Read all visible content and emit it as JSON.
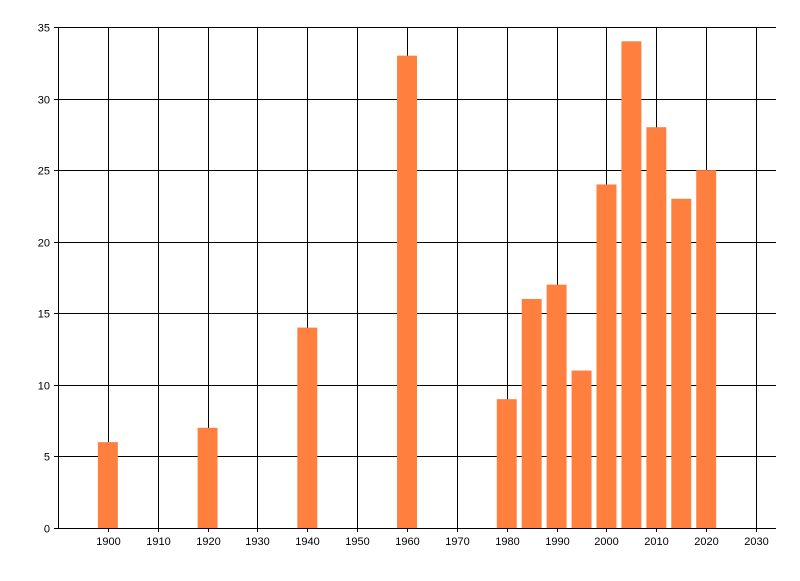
{
  "chart_data": {
    "type": "bar",
    "title": "",
    "xlabel": "",
    "ylabel": "",
    "x": [
      1900,
      1920,
      1940,
      1960,
      1980,
      1985,
      1990,
      1995,
      2000,
      2005,
      2010,
      2015,
      2020
    ],
    "values": [
      6,
      7,
      14,
      33,
      9,
      16,
      17,
      11,
      24,
      34,
      28,
      23,
      25
    ],
    "xlim": [
      1890,
      2034
    ],
    "ylim": [
      0,
      35
    ],
    "x_ticks": [
      "1900",
      "1910",
      "1920",
      "1930",
      "1940",
      "1950",
      "1960",
      "1970",
      "1980",
      "1990",
      "2000",
      "2010",
      "2020",
      "2030"
    ],
    "y_ticks": [
      "0",
      "5",
      "10",
      "15",
      "20",
      "25",
      "30",
      "35"
    ],
    "bar_width_years": 4,
    "grid": true,
    "legend": "none",
    "colors": {
      "bar": "#ff7f3f",
      "grid": "#000000",
      "axis": "#000000",
      "background": "#ffffff"
    }
  }
}
